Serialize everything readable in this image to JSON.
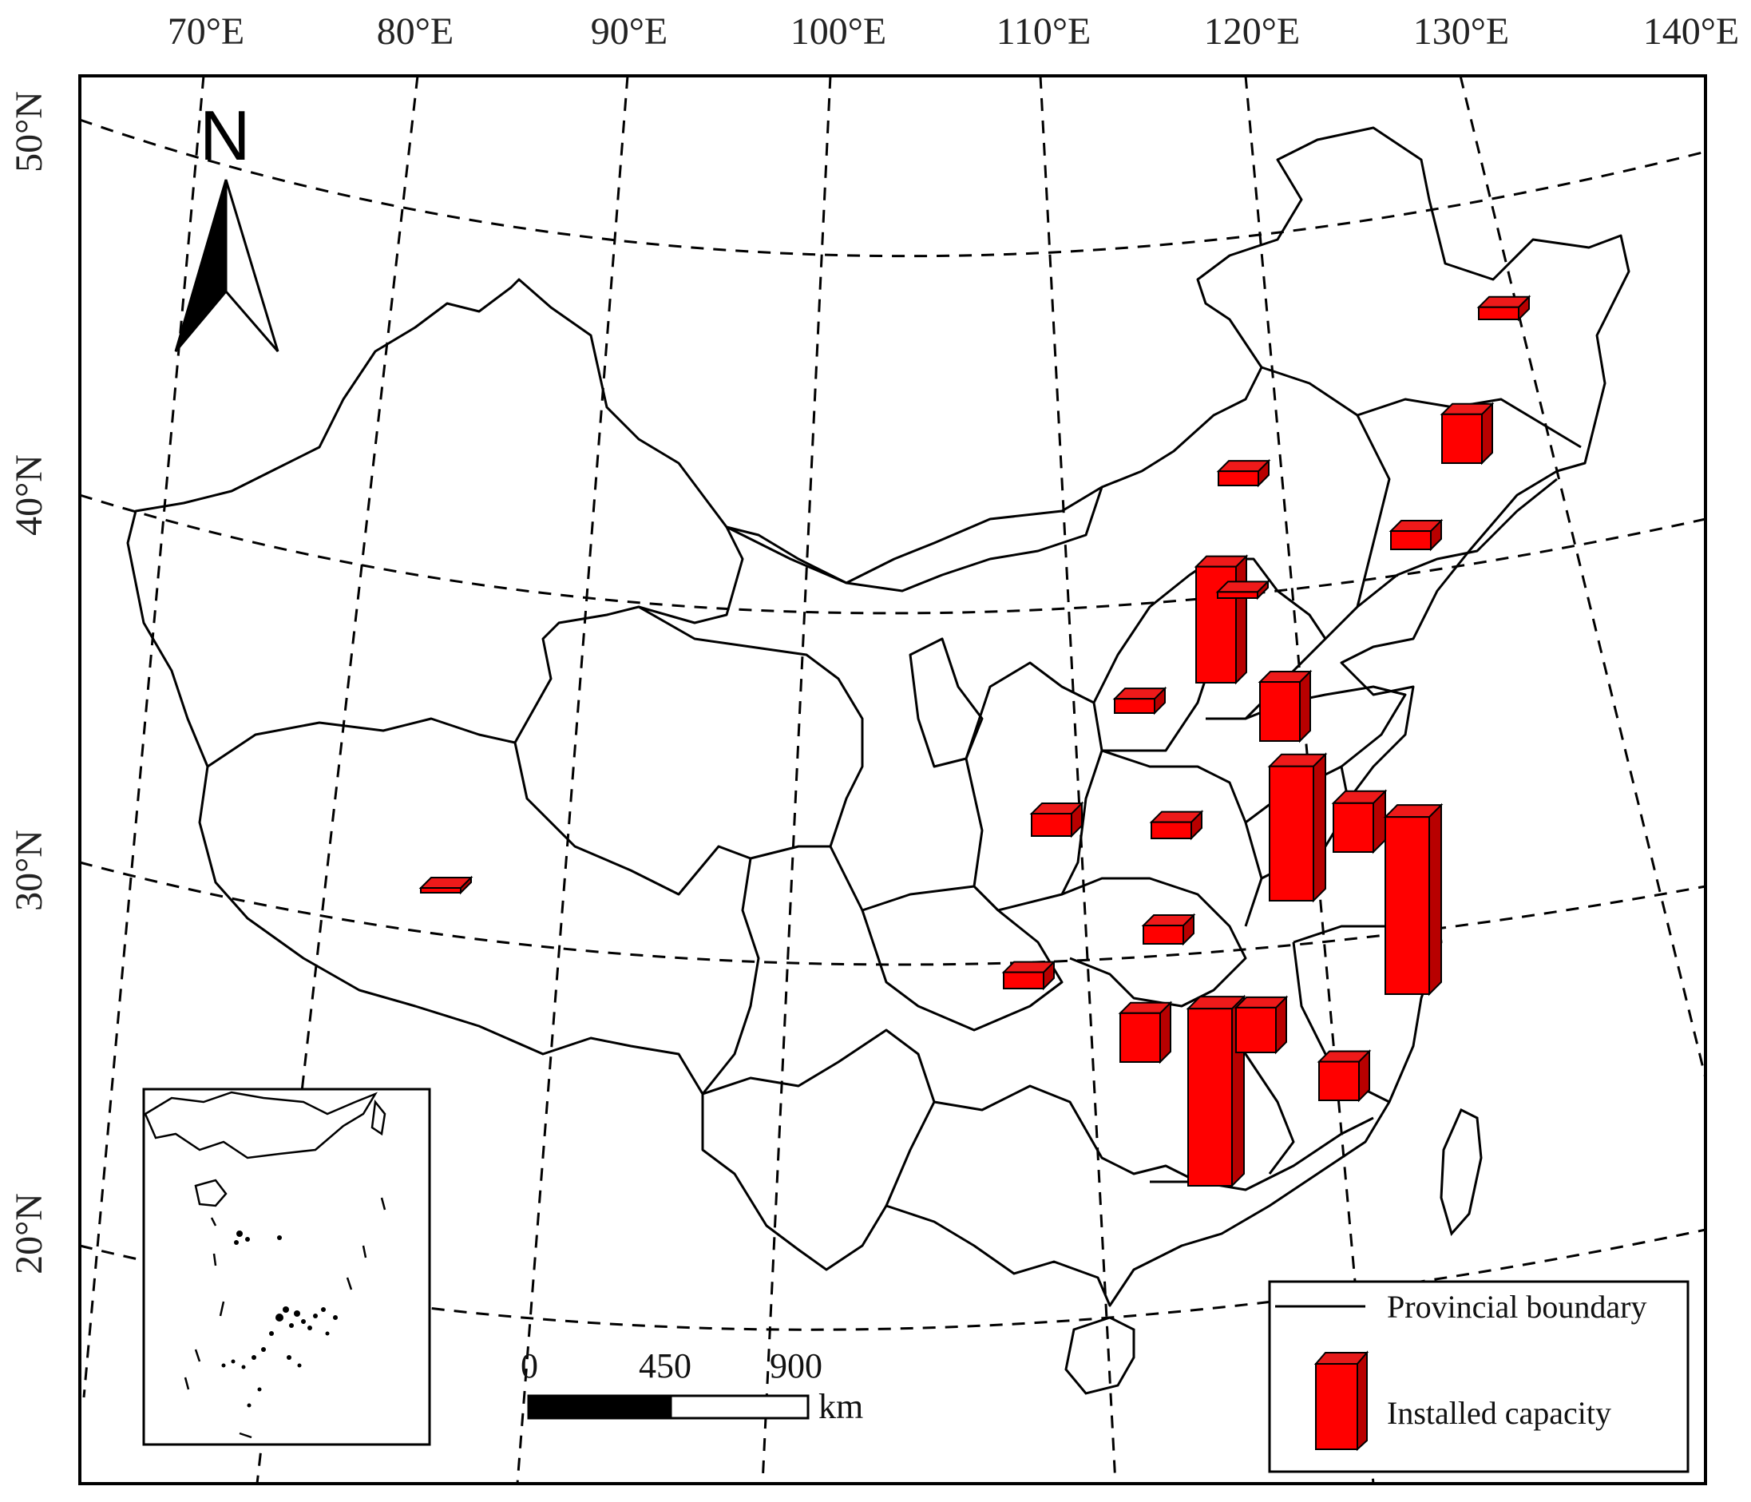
{
  "map": {
    "lon_labels": [
      "70°E",
      "80°E",
      "90°E",
      "100°E",
      "110°E",
      "120°E",
      "130°E",
      "140°E"
    ],
    "lat_labels": [
      "50°N",
      "40°N",
      "30°N",
      "20°N"
    ],
    "north_label": "N",
    "legend": {
      "boundary_label": "Provincial boundary",
      "capacity_label": "Installed capacity"
    },
    "scale_bar": {
      "labels": [
        "0",
        "450",
        "900"
      ],
      "unit": "km"
    },
    "colors": {
      "bar_front": "#ff0000",
      "bar_top": "#ee1a1a",
      "bar_side": "#b80000",
      "outline": "#000000",
      "graticule": "#000000"
    },
    "capacity_bars": [
      {
        "name": "heilongjiang-north",
        "level": 0.06
      },
      {
        "name": "heilongjiang",
        "level": 0.24
      },
      {
        "name": "inner-mongolia",
        "level": 0.07
      },
      {
        "name": "liaoning",
        "level": 0.09
      },
      {
        "name": "shanxi",
        "level": 0.57
      },
      {
        "name": "beijing",
        "level": 0.03
      },
      {
        "name": "shaanxi-north",
        "level": 0.07
      },
      {
        "name": "hebei",
        "level": 0.29
      },
      {
        "name": "sichuan-north",
        "level": 0.11
      },
      {
        "name": "henan-west",
        "level": 0.08
      },
      {
        "name": "shandong-jiangsu",
        "level": 0.66
      },
      {
        "name": "jiangsu-coast",
        "level": 0.24
      },
      {
        "name": "zhejiang",
        "level": 0.87
      },
      {
        "name": "hubei",
        "level": 0.09
      },
      {
        "name": "tibet",
        "level": 0.01
      },
      {
        "name": "chongqing",
        "level": 0.08
      },
      {
        "name": "hunan",
        "level": 0.24
      },
      {
        "name": "jiangxi-guangdong",
        "level": 0.87
      },
      {
        "name": "jiangxi-east",
        "level": 0.22
      },
      {
        "name": "fujian",
        "level": 0.19
      }
    ]
  }
}
